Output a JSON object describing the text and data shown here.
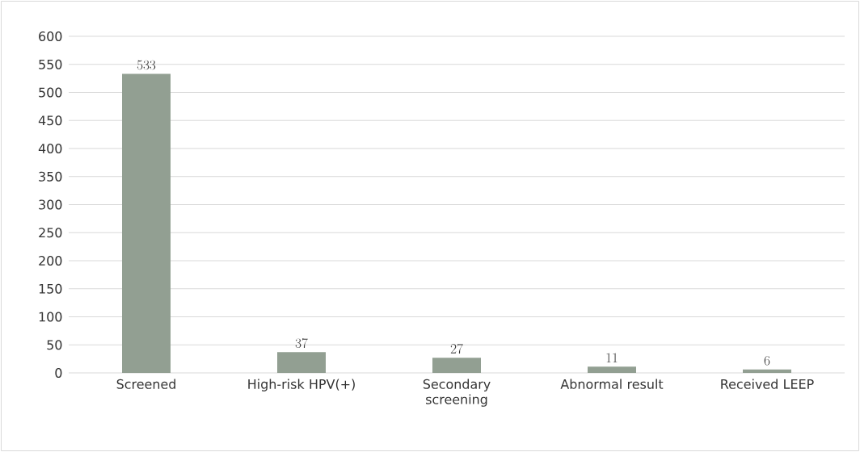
{
  "chart_data": {
    "type": "bar",
    "categories": [
      "Screened",
      "High-risk HPV(+)",
      "Secondary screening",
      "Abnormal result",
      "Received LEEP"
    ],
    "values": [
      533,
      37,
      27,
      11,
      6
    ],
    "color": "#929f92",
    "ylim": [
      0,
      600
    ],
    "yticks": [
      0,
      50,
      100,
      150,
      200,
      250,
      300,
      350,
      400,
      450,
      500,
      550,
      600
    ],
    "grid": "y",
    "data_labels": true
  }
}
